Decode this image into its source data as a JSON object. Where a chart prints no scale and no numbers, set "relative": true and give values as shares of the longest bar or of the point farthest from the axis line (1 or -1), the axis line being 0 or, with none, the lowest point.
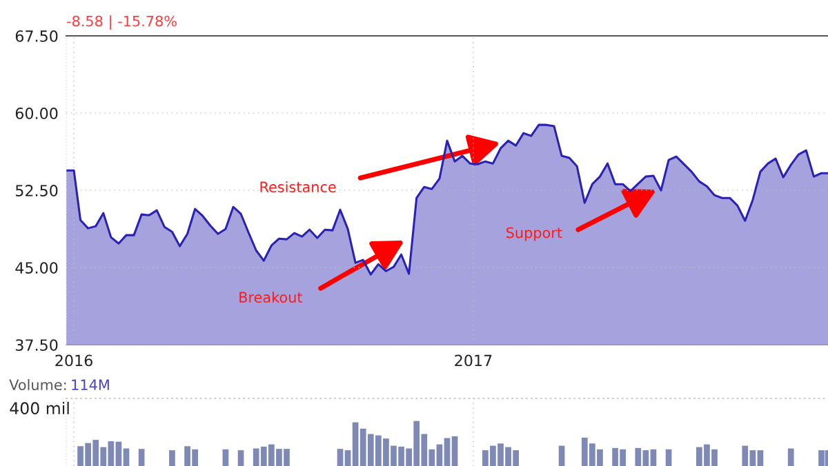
{
  "chart_data": [
    {
      "type": "area",
      "annotations": [
        "-8.58 | -15.78%",
        "Resistance",
        "Breakout",
        "Support"
      ],
      "x": [
        "2015-12-25",
        "2016-01-01",
        "2016-01-07",
        "2016-01-14",
        "2016-01-21",
        "2016-01-28",
        "2016-02-04",
        "2016-02-11",
        "2016-02-18",
        "2016-02-25",
        "2016-03-03",
        "2016-03-10",
        "2016-03-17",
        "2016-03-24",
        "2016-03-31",
        "2016-04-07",
        "2016-04-14",
        "2016-04-21",
        "2016-04-28",
        "2016-05-05",
        "2016-05-12",
        "2016-05-19",
        "2016-05-26",
        "2016-06-02",
        "2016-06-09",
        "2016-06-16",
        "2016-06-23",
        "2016-06-30",
        "2016-07-07",
        "2016-07-14",
        "2016-07-21",
        "2016-07-28",
        "2016-08-04",
        "2016-08-11",
        "2016-08-18",
        "2016-08-25",
        "2016-09-01",
        "2016-09-08",
        "2016-09-15",
        "2016-09-22",
        "2016-09-29",
        "2016-10-06",
        "2016-10-13",
        "2016-10-20",
        "2016-10-27",
        "2016-11-03",
        "2016-11-10",
        "2016-11-17",
        "2016-11-24",
        "2016-12-01",
        "2016-12-08",
        "2016-12-15",
        "2016-12-22",
        "2016-12-29",
        "2017-01-05",
        "2017-01-12",
        "2017-01-19",
        "2017-01-26",
        "2017-02-02",
        "2017-02-09",
        "2017-02-16",
        "2017-02-23",
        "2017-03-02",
        "2017-03-09",
        "2017-03-16",
        "2017-03-23",
        "2017-03-30",
        "2017-04-06",
        "2017-04-13",
        "2017-04-20",
        "2017-04-27",
        "2017-05-04",
        "2017-05-11",
        "2017-05-18",
        "2017-05-25",
        "2017-06-01",
        "2017-06-08",
        "2017-06-15",
        "2017-06-22",
        "2017-06-29",
        "2017-07-06",
        "2017-07-13",
        "2017-07-20",
        "2017-07-27",
        "2017-08-03",
        "2017-08-10",
        "2017-08-17",
        "2017-08-24",
        "2017-08-31",
        "2017-09-07",
        "2017-09-14",
        "2017-09-21",
        "2017-09-28",
        "2017-10-05",
        "2017-10-12",
        "2017-10-19",
        "2017-10-26",
        "2017-11-02",
        "2017-11-09",
        "2017-11-16",
        "2017-11-22"
      ],
      "series": [
        {
          "color": "#2a22b0",
          "values": [
            54.44,
            54.44,
            49.62,
            48.82,
            49.02,
            50.29,
            47.95,
            47.34,
            48.15,
            48.15,
            50.16,
            50.09,
            50.56,
            48.95,
            48.48,
            47.08,
            48.28,
            50.69,
            50.02,
            49.08,
            48.28,
            48.75,
            50.89,
            50.22,
            48.41,
            46.67,
            45.67,
            47.14,
            47.81,
            47.75,
            48.35,
            48.01,
            48.68,
            47.88,
            48.68,
            48.62,
            50.62,
            48.75,
            45.47,
            45.74,
            44.33,
            45.33,
            44.66,
            45.07,
            46.27,
            44.4,
            51.76,
            52.83,
            52.63,
            53.64,
            57.32,
            55.31,
            55.85,
            55.11,
            55.04,
            55.31,
            55.11,
            56.58,
            57.32,
            56.85,
            58.06,
            57.79,
            58.86,
            58.86,
            58.73,
            55.85,
            55.65,
            54.84,
            51.29,
            53.1,
            53.84,
            55.11,
            53.1,
            53.1,
            52.43,
            null,
            53.84,
            53.91,
            52.5,
            55.45,
            55.78,
            55.04,
            54.31,
            53.37,
            52.9,
            52.03,
            51.76,
            51.76,
            51.03,
            49.55,
            51.56,
            54.31,
            55.11,
            55.58,
            53.77,
            54.98,
            55.98,
            56.38,
            53.84,
            54.17,
            54.17
          ]
        }
      ],
      "xlim": [
        "2015-12-25",
        "2017-11-22"
      ],
      "xticks": [
        {
          "value": "2016-01-01",
          "label": "2016"
        },
        {
          "value": "2017-01-01",
          "label": "2017"
        }
      ],
      "ylim": [
        37.5,
        67.5
      ],
      "yticks": [
        {
          "value": 37.5,
          "label": "37.50"
        },
        {
          "value": 45,
          "label": "45.00"
        },
        {
          "value": 52.5,
          "label": "52.50"
        },
        {
          "value": 60,
          "label": "60.00"
        },
        {
          "value": 67.5,
          "label": "67.50"
        }
      ],
      "grid": true
    },
    {
      "type": "bar",
      "title": "Volume:",
      "annotations": [
        "114M",
        "400 mil"
      ],
      "relative": true,
      "x": [
        "2016-01-07",
        "2016-01-14",
        "2016-01-21",
        "2016-01-28",
        "2016-02-04",
        "2016-02-11",
        "2016-02-18",
        "2016-02-25",
        "2016-03-03",
        "2016-03-10",
        "2016-03-17",
        "2016-03-24",
        "2016-03-31",
        "2016-04-07",
        "2016-04-14",
        "2016-04-21",
        "2016-04-28",
        "2016-05-05",
        "2016-05-12",
        "2016-05-19",
        "2016-05-26",
        "2016-06-02",
        "2016-06-09",
        "2016-06-16",
        "2016-06-23",
        "2016-06-30",
        "2016-07-07",
        "2016-07-14",
        "2016-07-21",
        "2016-07-28",
        "2016-08-04",
        "2016-08-11",
        "2016-08-18",
        "2016-08-25",
        "2016-09-01",
        "2016-09-08",
        "2016-09-15",
        "2016-09-22",
        "2016-09-29",
        "2016-10-06",
        "2016-10-13",
        "2016-10-20",
        "2016-10-27",
        "2016-11-03",
        "2016-11-10",
        "2016-11-17",
        "2016-11-24",
        "2016-12-01",
        "2016-12-08",
        "2016-12-15",
        "2016-12-22",
        "2016-12-29",
        "2017-01-05",
        "2017-01-12",
        "2017-01-19",
        "2017-01-26",
        "2017-02-02",
        "2017-02-09",
        "2017-02-16",
        "2017-02-23",
        "2017-03-02",
        "2017-03-09",
        "2017-03-16",
        "2017-03-23",
        "2017-03-30",
        "2017-04-06",
        "2017-04-13",
        "2017-04-20",
        "2017-04-27",
        "2017-05-04",
        "2017-05-11",
        "2017-05-18",
        "2017-05-25",
        "2017-06-01",
        "2017-06-08",
        "2017-06-15",
        "2017-06-22",
        "2017-06-29",
        "2017-07-06",
        "2017-07-13",
        "2017-07-20",
        "2017-07-27",
        "2017-08-03",
        "2017-08-10",
        "2017-08-17",
        "2017-08-24",
        "2017-08-31",
        "2017-09-07",
        "2017-09-14",
        "2017-09-21",
        "2017-09-28",
        "2017-10-05",
        "2017-10-12",
        "2017-10-19",
        "2017-10-26",
        "2017-11-02",
        "2017-11-09",
        "2017-11-16",
        "2017-11-22"
      ],
      "series": [
        {
          "color": "#7f89b5",
          "values": [
            0.44,
            0.51,
            0.58,
            0.42,
            0.55,
            0.54,
            0.39,
            null,
            0.38,
            null,
            null,
            null,
            0.35,
            null,
            0.44,
            0.37,
            null,
            null,
            null,
            0.37,
            null,
            0.35,
            null,
            0.39,
            0.43,
            0.48,
            0.38,
            0.38,
            null,
            null,
            null,
            null,
            null,
            null,
            0.38,
            0.35,
            0.97,
            0.83,
            0.71,
            0.68,
            0.61,
            0.45,
            0.43,
            0.39,
            1,
            0.71,
            0.37,
            0.48,
            0.62,
            0.66,
            null,
            null,
            null,
            0.35,
            0.45,
            0.5,
            0.42,
            0.35,
            null,
            null,
            null,
            null,
            null,
            0.45,
            null,
            null,
            0.63,
            0.5,
            0.37,
            null,
            0.4,
            0.37,
            null,
            0.4,
            0.35,
            0.37,
            null,
            0.37,
            null,
            null,
            null,
            0.42,
            0.48,
            0.37,
            null,
            null,
            null,
            0.45,
            0.35,
            0.35,
            null,
            null,
            null,
            0.39,
            null,
            null,
            null,
            0.35,
            0.35
          ]
        }
      ],
      "xlim": [
        "2015-12-25",
        "2017-11-22"
      ],
      "xticks": [
        {
          "value": "2016-01-01",
          "label": null
        },
        {
          "value": "2017-01-01",
          "label": null
        }
      ],
      "tick_labels": false,
      "grid": "x"
    }
  ]
}
